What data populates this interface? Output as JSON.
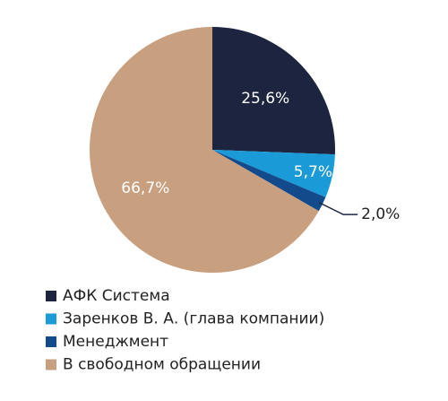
{
  "chart_data": {
    "type": "pie",
    "categories": [
      "АФК Система",
      "Заренков В. А. (глава компании)",
      "Менеджмент",
      "В свободном обращении"
    ],
    "values": [
      25.6,
      5.7,
      2.0,
      66.7
    ],
    "value_labels": [
      "25,6%",
      "5,7%",
      "2,0%",
      "66,7%"
    ],
    "colors": [
      "#1c2440",
      "#1a9ad6",
      "#124a8c",
      "#c9a07f"
    ],
    "legend": "bottom"
  }
}
